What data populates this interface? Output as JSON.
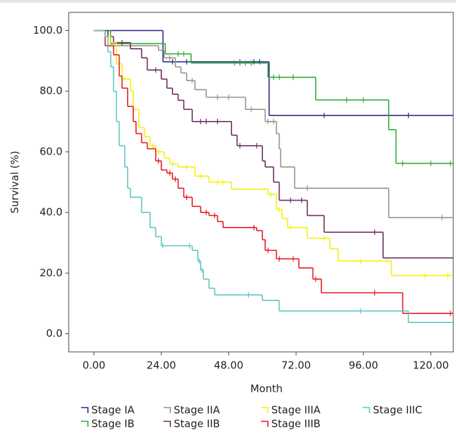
{
  "chart_data": {
    "type": "step",
    "x_label": "Month",
    "y_label": "Survival (%)",
    "xlim": [
      -9,
      128
    ],
    "ylim": [
      -6,
      106
    ],
    "xticks": [
      {
        "value": 0,
        "label": "0.00"
      },
      {
        "value": 24,
        "label": "24.00"
      },
      {
        "value": 48,
        "label": "48.00"
      },
      {
        "value": 72,
        "label": "72.00"
      },
      {
        "value": 96,
        "label": "96.00"
      },
      {
        "value": 120,
        "label": "120.00"
      }
    ],
    "yticks": [
      {
        "value": 0,
        "label": "0.0"
      },
      {
        "value": 20,
        "label": "20.0"
      },
      {
        "value": 40,
        "label": "40.0"
      },
      {
        "value": 60,
        "label": "60.0"
      },
      {
        "value": 80,
        "label": "80.0"
      },
      {
        "value": 100,
        "label": "100.0"
      }
    ],
    "series": [
      {
        "name": "Stage IA",
        "color": "#2b2a8e",
        "x": [
          0,
          24.6,
          62.4,
          128
        ],
        "values": [
          100,
          89.7,
          72,
          72
        ],
        "censored": [
          28,
          33,
          52,
          57,
          59,
          82,
          112
        ]
      },
      {
        "name": "Stage IB",
        "color": "#2eaa35",
        "x": [
          0,
          5.9,
          25.4,
          34.6,
          62,
          79,
          105,
          107.6,
          128
        ],
        "values": [
          100,
          95.7,
          92.3,
          89.3,
          84.6,
          77.1,
          67.3,
          56.2,
          56.2
        ],
        "censored": [
          30,
          32,
          50,
          52,
          54,
          56,
          64,
          66,
          71,
          90,
          96,
          110,
          120,
          127
        ]
      },
      {
        "name": "Stage IIA",
        "color": "#9b8f85",
        "x": [
          0,
          5,
          23,
          25,
          29,
          31,
          33,
          36,
          40,
          54,
          61,
          65,
          66,
          66.5,
          71.5,
          105,
          128
        ],
        "values": [
          100,
          95,
          93.5,
          91,
          88,
          86,
          83.5,
          80.5,
          78,
          74,
          70,
          66,
          61,
          55,
          48,
          38.3,
          38.3
        ],
        "censored": [
          27,
          35,
          44,
          48,
          56,
          62,
          64,
          76,
          124
        ]
      },
      {
        "name": "Stage IIB",
        "color": "#6b2b5e",
        "x": [
          0,
          5,
          7,
          13,
          17,
          19,
          24,
          26,
          28,
          30,
          32,
          35,
          49,
          51,
          60,
          61,
          64,
          66,
          72,
          76,
          82,
          103,
          128
        ],
        "values": [
          100,
          98,
          96,
          94,
          91,
          87,
          84,
          81,
          79,
          77,
          74,
          70,
          65.5,
          62,
          57,
          55,
          50,
          44,
          44,
          39,
          33.5,
          25,
          25
        ],
        "censored": [
          10,
          22,
          38,
          40,
          44,
          52,
          58,
          70,
          74,
          100
        ]
      },
      {
        "name": "Stage IIIA",
        "color": "#f5ef0a",
        "x": [
          0,
          4,
          6,
          8,
          10,
          13,
          14,
          16,
          18,
          20,
          22,
          25,
          27,
          30,
          36,
          41,
          49,
          62,
          65,
          67,
          69,
          76,
          84,
          87,
          106,
          128
        ],
        "values": [
          100,
          98,
          96,
          89,
          84,
          80,
          74,
          68,
          65,
          62,
          60,
          58,
          56,
          55,
          52,
          50,
          47.7,
          46,
          41,
          38,
          35,
          31.5,
          28,
          24,
          19.2,
          19.2
        ],
        "censored": [
          11,
          21,
          23,
          28,
          33,
          38,
          44,
          46,
          63,
          66,
          70,
          82,
          95,
          118,
          126
        ]
      },
      {
        "name": "Stage IIIB",
        "color": "#e8161e",
        "x": [
          0,
          4,
          7,
          9,
          10,
          12,
          14,
          15,
          17,
          19,
          22,
          24,
          26,
          28,
          30,
          32,
          35,
          38,
          41,
          44,
          46,
          58,
          60,
          61,
          65,
          70,
          73,
          78,
          81,
          95,
          110,
          128
        ],
        "values": [
          100,
          95,
          92,
          85,
          81,
          75,
          70,
          66,
          63,
          61,
          57,
          54,
          53,
          51,
          48,
          45,
          42,
          40,
          39,
          37,
          35,
          34,
          31,
          27.5,
          24.7,
          24.7,
          21.7,
          18,
          13.5,
          13.5,
          6.7,
          6.7
        ],
        "censored": [
          23,
          27,
          29,
          33,
          40,
          43,
          57,
          62,
          66,
          71,
          79,
          100,
          127
        ]
      },
      {
        "name": "Stage IIIC",
        "color": "#5cc6c0",
        "x": [
          0,
          4,
          5,
          6,
          7,
          8,
          9,
          11,
          12,
          13,
          17,
          20,
          22,
          24,
          35,
          37,
          38,
          39,
          41,
          43,
          60,
          66,
          112,
          128
        ],
        "values": [
          100,
          98,
          93,
          88,
          80,
          70,
          62,
          55,
          48,
          45,
          40,
          35,
          32,
          29,
          27.5,
          24,
          21,
          18,
          15,
          12.8,
          11,
          7.5,
          3.7,
          3.7
        ],
        "censored": [
          24.5,
          34,
          37.5,
          38.5,
          55,
          95
        ]
      }
    ]
  }
}
